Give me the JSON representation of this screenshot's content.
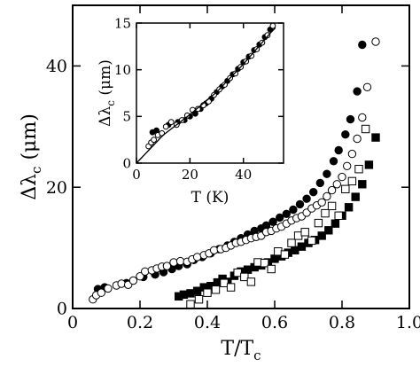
{
  "chart_data": [
    {
      "type": "scatter",
      "panel": "main",
      "xlabel": "T/T",
      "xlabel_sub": "c",
      "ylabel": "Δλ",
      "ylabel_sub": "c",
      "ylabel_unit": " (μm)",
      "xlim": [
        0,
        1.0
      ],
      "ylim": [
        0,
        50
      ],
      "xticks": [
        0,
        0.2,
        0.4,
        0.6,
        0.8,
        1.0
      ],
      "xtick_labels": [
        "0",
        "0.2",
        "0.4",
        "0.6",
        "0.8",
        "1.0"
      ],
      "yticks": [
        0,
        20,
        40
      ],
      "ytick_labels": [
        "0",
        "20",
        "40"
      ],
      "grid": false,
      "legend": "none",
      "series": [
        {
          "marker": "filled-circle",
          "x": [
            0.075,
            0.095,
            0.16,
            0.21,
            0.245,
            0.27,
            0.295,
            0.315,
            0.34,
            0.36,
            0.385,
            0.41,
            0.435,
            0.46,
            0.48,
            0.5,
            0.52,
            0.54,
            0.56,
            0.575,
            0.595,
            0.615,
            0.635,
            0.655,
            0.675,
            0.695,
            0.715,
            0.735,
            0.755,
            0.775,
            0.79,
            0.81,
            0.825,
            0.845,
            0.86
          ],
          "y": [
            3.2,
            3.5,
            4.2,
            5.2,
            5.6,
            6.0,
            6.5,
            7.0,
            7.3,
            8.0,
            8.5,
            9.1,
            9.8,
            10.4,
            11.0,
            11.6,
            12.2,
            12.8,
            13.2,
            13.7,
            14.3,
            15.0,
            15.6,
            16.3,
            17.2,
            18.1,
            19.2,
            20.7,
            22.2,
            24.3,
            26.1,
            28.7,
            31.2,
            35.8,
            43.5
          ]
        },
        {
          "marker": "open-circle",
          "x": [
            0.06,
            0.07,
            0.085,
            0.105,
            0.13,
            0.145,
            0.165,
            0.18,
            0.2,
            0.215,
            0.235,
            0.25,
            0.265,
            0.28,
            0.3,
            0.32,
            0.34,
            0.355,
            0.37,
            0.39,
            0.405,
            0.42,
            0.44,
            0.455,
            0.47,
            0.485,
            0.5,
            0.515,
            0.53,
            0.545,
            0.56,
            0.575,
            0.59,
            0.605,
            0.62,
            0.635,
            0.65,
            0.665,
            0.68,
            0.695,
            0.71,
            0.725,
            0.74,
            0.755,
            0.77,
            0.785,
            0.8,
            0.815,
            0.83,
            0.845,
            0.86,
            0.875,
            0.9
          ],
          "y": [
            1.5,
            2.2,
            2.6,
            3.3,
            3.8,
            4.1,
            3.9,
            4.6,
            5.3,
            6.1,
            6.3,
            6.6,
            6.9,
            7.0,
            7.6,
            7.8,
            7.7,
            8.1,
            8.5,
            8.8,
            9.1,
            9.6,
            9.8,
            10.0,
            10.4,
            10.8,
            11.0,
            11.3,
            11.6,
            11.8,
            12.0,
            12.6,
            12.8,
            13.2,
            13.5,
            14.0,
            14.5,
            14.9,
            15.2,
            15.8,
            16.5,
            17.0,
            17.5,
            18.5,
            19.5,
            20.5,
            21.7,
            23.5,
            25.5,
            28.0,
            31.5,
            36.5,
            44.0
          ]
        }
      ]
    },
    {
      "type": "scatter",
      "panel": "main",
      "series": [
        {
          "marker": "filled-square",
          "x": [
            0.315,
            0.33,
            0.35,
            0.37,
            0.39,
            0.41,
            0.43,
            0.445,
            0.46,
            0.48,
            0.5,
            0.52,
            0.54,
            0.56,
            0.58,
            0.6,
            0.62,
            0.64,
            0.66,
            0.68,
            0.7,
            0.72,
            0.74,
            0.76,
            0.78,
            0.8,
            0.82,
            0.84,
            0.86,
            0.88,
            0.9
          ],
          "y": [
            2.0,
            2.3,
            2.5,
            2.9,
            3.5,
            3.7,
            4.3,
            4.9,
            4.4,
            5.4,
            6.1,
            6.4,
            6.8,
            7.1,
            7.6,
            8.2,
            8.6,
            9.2,
            9.6,
            10.2,
            10.8,
            11.3,
            12.0,
            12.9,
            14.0,
            15.3,
            16.7,
            18.4,
            20.5,
            23.7,
            28.2
          ]
        },
        {
          "marker": "open-square",
          "x": [
            0.35,
            0.375,
            0.4,
            0.425,
            0.45,
            0.47,
            0.49,
            0.51,
            0.53,
            0.55,
            0.57,
            0.59,
            0.61,
            0.63,
            0.65,
            0.67,
            0.69,
            0.71,
            0.73,
            0.75,
            0.77,
            0.79,
            0.81,
            0.83,
            0.85,
            0.87
          ],
          "y": [
            0.7,
            1.5,
            2.6,
            3.1,
            4.2,
            3.5,
            5.9,
            5.2,
            4.4,
            7.6,
            7.5,
            6.5,
            9.4,
            8.9,
            10.8,
            12.0,
            12.6,
            11.2,
            14.1,
            15.7,
            16.9,
            15.3,
            19.7,
            21.0,
            23.0,
            29.6
          ]
        }
      ]
    },
    {
      "type": "scatter",
      "panel": "inset",
      "xlabel": "T (K)",
      "ylabel": "Δλ",
      "ylabel_sub": "c",
      "ylabel_unit": " (μm)",
      "xlim": [
        0,
        55
      ],
      "ylim": [
        0,
        15
      ],
      "xticks": [
        0,
        20,
        40
      ],
      "xtick_labels": [
        "0",
        "20",
        "40"
      ],
      "yticks": [
        0,
        5,
        10,
        15
      ],
      "ytick_labels": [
        "0",
        "5",
        "10",
        "15"
      ],
      "grid": false,
      "legend": "none",
      "series": [
        {
          "marker": "filled-circle",
          "x": [
            6,
            7.5,
            12,
            15.5,
            18,
            20,
            22,
            24,
            26,
            28,
            30,
            32,
            34,
            36,
            38,
            40,
            42,
            44,
            46,
            48,
            50
          ],
          "y": [
            3.3,
            3.5,
            4.1,
            4.4,
            4.6,
            5.0,
            5.3,
            5.8,
            6.4,
            6.9,
            7.6,
            8.2,
            8.8,
            9.5,
            10.1,
            10.8,
            11.4,
            12.1,
            12.7,
            13.5,
            14.3
          ]
        },
        {
          "marker": "open-circle",
          "x": [
            4.5,
            5.5,
            6.5,
            8,
            9.5,
            11,
            13,
            15,
            17,
            19,
            21,
            23,
            25,
            27,
            29,
            31,
            33,
            35,
            37,
            39,
            41,
            43,
            45,
            47,
            49,
            51
          ],
          "y": [
            1.8,
            2.2,
            2.5,
            3.0,
            3.2,
            3.9,
            4.4,
            4.1,
            4.6,
            5.1,
            5.7,
            5.8,
            6.2,
            6.6,
            7.3,
            7.9,
            8.4,
            9.1,
            9.6,
            10.3,
            10.9,
            11.5,
            12.2,
            12.9,
            13.7,
            14.7
          ]
        },
        {
          "marker": "line",
          "x": [
            0,
            10,
            20,
            30,
            40,
            50,
            52
          ],
          "y": [
            0,
            3.0,
            5.2,
            7.6,
            10.6,
            13.9,
            14.5
          ]
        }
      ]
    }
  ]
}
